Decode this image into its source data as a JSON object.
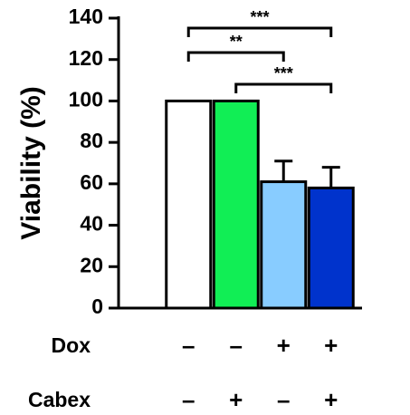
{
  "chart_data": {
    "type": "bar",
    "y_label": "Viability (%)",
    "series": [
      {
        "values": [
          100,
          100,
          61,
          58
        ],
        "errors": [
          null,
          null,
          10,
          10
        ],
        "colors": [
          "#ffffff",
          "#11ee55",
          "#88ccff",
          "#0033cc"
        ]
      }
    ],
    "ylim": [
      0,
      140
    ],
    "yticks": [
      0,
      20,
      40,
      60,
      80,
      100,
      120,
      140
    ],
    "annotations": [
      {
        "label": "***"
      },
      {
        "label": "**"
      },
      {
        "label": "***"
      }
    ],
    "conditions": [
      {
        "name": "Dox",
        "values": [
          "–",
          "–",
          "+",
          "+"
        ]
      },
      {
        "name": "Cabex",
        "values": [
          "–",
          "+",
          "–",
          "+"
        ]
      }
    ]
  }
}
